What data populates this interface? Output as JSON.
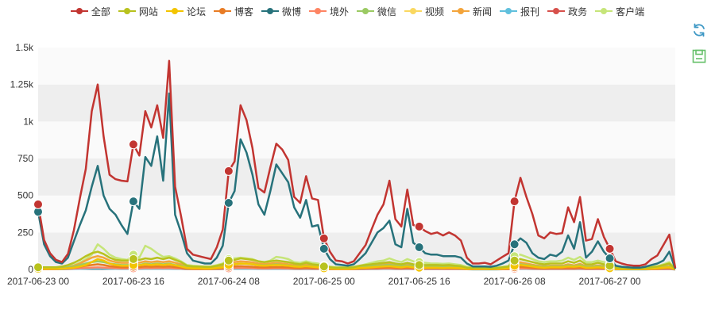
{
  "chart_data": {
    "type": "line",
    "title": "",
    "xlabel": "",
    "ylabel": "",
    "ylim": [
      0,
      1500
    ],
    "y_ticks": [
      0,
      250,
      500,
      750,
      1000,
      1250,
      1500
    ],
    "y_tick_labels": [
      "0",
      "250",
      "500",
      "750",
      "1k",
      "1.25k",
      "1.5k"
    ],
    "x_tick_labels": [
      "2017-06-23 00",
      "2017-06-23 16",
      "2017-06-24 08",
      "2017-06-25 00",
      "2017-06-25 16",
      "2017-06-26 08",
      "2017-06-27 00"
    ],
    "x_tick_indices": [
      0,
      16,
      32,
      48,
      64,
      80,
      96
    ],
    "grid": true,
    "legend_position": "top-center",
    "series": [
      {
        "name": "全部",
        "color": "#c23531",
        "values": [
          440,
          200,
          110,
          65,
          50,
          105,
          265,
          480,
          680,
          1070,
          1250,
          900,
          640,
          610,
          600,
          595,
          845,
          770,
          1070,
          960,
          1110,
          890,
          1410,
          560,
          360,
          140,
          100,
          90,
          80,
          70,
          150,
          270,
          665,
          730,
          1110,
          1010,
          820,
          550,
          520,
          690,
          850,
          810,
          740,
          490,
          450,
          630,
          480,
          470,
          210,
          120,
          60,
          55,
          40,
          55,
          110,
          165,
          270,
          370,
          440,
          600,
          340,
          290,
          540,
          300,
          290,
          260,
          240,
          250,
          230,
          250,
          230,
          195,
          80,
          40,
          40,
          45,
          35,
          60,
          85,
          110,
          460,
          620,
          490,
          375,
          230,
          210,
          250,
          240,
          245,
          420,
          320,
          490,
          195,
          205,
          340,
          220,
          140,
          55,
          40,
          30,
          25,
          25,
          35,
          70,
          95,
          165,
          235,
          10
        ]
      },
      {
        "name": "网站",
        "color": "#b8c21e",
        "values": [
          15,
          15,
          15,
          15,
          20,
          30,
          45,
          65,
          90,
          110,
          120,
          105,
          80,
          65,
          60,
          60,
          70,
          65,
          75,
          70,
          80,
          70,
          80,
          65,
          50,
          25,
          20,
          20,
          18,
          18,
          25,
          35,
          60,
          65,
          75,
          70,
          65,
          55,
          50,
          55,
          60,
          55,
          50,
          40,
          35,
          45,
          35,
          30,
          20,
          15,
          12,
          12,
          12,
          15,
          25,
          30,
          35,
          40,
          45,
          50,
          40,
          35,
          45,
          35,
          30,
          30,
          30,
          30,
          28,
          30,
          25,
          22,
          12,
          10,
          10,
          10,
          8,
          10,
          15,
          20,
          60,
          70,
          60,
          50,
          40,
          35,
          40,
          40,
          40,
          55,
          45,
          60,
          35,
          35,
          45,
          35,
          25,
          12,
          10,
          8,
          8,
          8,
          10,
          15,
          20,
          30,
          40,
          5
        ]
      },
      {
        "name": "论坛",
        "color": "#f3c400",
        "values": [
          5,
          5,
          5,
          5,
          5,
          8,
          12,
          20,
          30,
          50,
          70,
          60,
          40,
          30,
          25,
          25,
          30,
          28,
          35,
          30,
          35,
          30,
          35,
          28,
          20,
          10,
          8,
          8,
          6,
          6,
          10,
          15,
          30,
          35,
          40,
          38,
          35,
          28,
          25,
          28,
          30,
          28,
          25,
          20,
          18,
          22,
          18,
          15,
          8,
          6,
          5,
          5,
          5,
          6,
          10,
          12,
          15,
          18,
          20,
          22,
          18,
          15,
          20,
          15,
          12,
          12,
          12,
          12,
          10,
          12,
          10,
          8,
          5,
          4,
          4,
          4,
          3,
          4,
          6,
          8,
          25,
          30,
          25,
          20,
          15,
          12,
          15,
          15,
          15,
          20,
          18,
          22,
          12,
          12,
          15,
          12,
          8,
          4,
          3,
          3,
          3,
          3,
          4,
          6,
          8,
          12,
          15,
          2
        ]
      },
      {
        "name": "博客",
        "color": "#e87c25",
        "values": [
          3,
          3,
          3,
          3,
          5,
          8,
          12,
          18,
          25,
          30,
          35,
          30,
          22,
          18,
          15,
          15,
          18,
          16,
          20,
          18,
          20,
          18,
          20,
          16,
          12,
          6,
          5,
          5,
          4,
          4,
          6,
          10,
          18,
          20,
          22,
          20,
          18,
          15,
          14,
          15,
          16,
          15,
          14,
          11,
          10,
          12,
          10,
          9,
          5,
          4,
          3,
          3,
          3,
          4,
          6,
          8,
          10,
          11,
          12,
          14,
          11,
          10,
          12,
          10,
          9,
          9,
          9,
          9,
          8,
          9,
          8,
          7,
          4,
          3,
          3,
          3,
          2,
          3,
          4,
          5,
          15,
          18,
          15,
          12,
          9,
          8,
          9,
          9,
          9,
          12,
          10,
          13,
          8,
          8,
          10,
          8,
          6,
          3,
          2,
          2,
          2,
          2,
          3,
          4,
          5,
          8,
          10,
          1
        ]
      },
      {
        "name": "微博",
        "color": "#27727b",
        "values": [
          390,
          170,
          90,
          50,
          40,
          80,
          190,
          300,
          400,
          560,
          700,
          500,
          410,
          370,
          300,
          240,
          460,
          410,
          760,
          700,
          900,
          600,
          1190,
          370,
          250,
          110,
          60,
          50,
          40,
          40,
          80,
          160,
          450,
          530,
          880,
          790,
          640,
          440,
          370,
          530,
          710,
          650,
          590,
          420,
          350,
          470,
          290,
          300,
          140,
          70,
          35,
          30,
          25,
          35,
          70,
          110,
          180,
          250,
          280,
          330,
          170,
          150,
          410,
          180,
          150,
          110,
          100,
          100,
          90,
          90,
          90,
          80,
          40,
          20,
          20,
          20,
          18,
          25,
          40,
          60,
          170,
          210,
          180,
          110,
          80,
          70,
          100,
          90,
          120,
          230,
          140,
          320,
          80,
          120,
          190,
          120,
          75,
          25,
          18,
          15,
          12,
          12,
          18,
          30,
          40,
          60,
          120,
          5
        ]
      },
      {
        "name": "境外",
        "color": "#fe8463",
        "values": [
          2,
          2,
          2,
          2,
          3,
          4,
          6,
          8,
          10,
          12,
          14,
          12,
          10,
          8,
          7,
          7,
          8,
          7,
          9,
          8,
          9,
          8,
          9,
          7,
          6,
          3,
          2,
          2,
          2,
          2,
          3,
          4,
          8,
          9,
          10,
          9,
          8,
          7,
          6,
          7,
          8,
          7,
          6,
          5,
          5,
          6,
          5,
          4,
          2,
          2,
          2,
          2,
          2,
          2,
          3,
          4,
          5,
          5,
          6,
          6,
          5,
          4,
          6,
          4,
          4,
          4,
          4,
          4,
          3,
          4,
          3,
          3,
          2,
          1,
          1,
          1,
          1,
          1,
          2,
          2,
          6,
          7,
          6,
          5,
          4,
          3,
          4,
          4,
          4,
          5,
          4,
          6,
          3,
          3,
          4,
          3,
          2,
          1,
          1,
          1,
          1,
          1,
          1,
          2,
          2,
          3,
          4,
          1
        ]
      },
      {
        "name": "微信",
        "color": "#9bca63",
        "values": [
          10,
          10,
          10,
          10,
          12,
          15,
          20,
          30,
          40,
          50,
          55,
          50,
          40,
          35,
          30,
          30,
          35,
          30,
          40,
          35,
          40,
          35,
          40,
          30,
          25,
          15,
          12,
          12,
          10,
          10,
          12,
          18,
          30,
          35,
          40,
          38,
          35,
          30,
          28,
          30,
          35,
          30,
          28,
          22,
          20,
          25,
          20,
          18,
          12,
          10,
          8,
          8,
          8,
          10,
          15,
          18,
          22,
          25,
          28,
          32,
          25,
          22,
          28,
          22,
          20,
          20,
          20,
          20,
          18,
          20,
          18,
          15,
          8,
          6,
          6,
          6,
          5,
          6,
          10,
          12,
          30,
          35,
          30,
          25,
          20,
          18,
          20,
          20,
          20,
          28,
          22,
          30,
          18,
          18,
          22,
          18,
          12,
          6,
          5,
          4,
          4,
          4,
          5,
          8,
          10,
          15,
          20,
          3
        ]
      },
      {
        "name": "视频",
        "color": "#fad860",
        "values": [
          4,
          4,
          4,
          4,
          5,
          7,
          10,
          15,
          22,
          30,
          35,
          30,
          22,
          18,
          15,
          15,
          18,
          16,
          20,
          18,
          20,
          18,
          20,
          16,
          12,
          6,
          5,
          5,
          4,
          4,
          6,
          10,
          18,
          20,
          22,
          20,
          18,
          15,
          14,
          15,
          16,
          15,
          14,
          11,
          10,
          12,
          10,
          9,
          5,
          4,
          3,
          3,
          3,
          4,
          6,
          8,
          10,
          11,
          12,
          14,
          11,
          10,
          12,
          10,
          9,
          9,
          9,
          9,
          8,
          9,
          8,
          7,
          4,
          3,
          3,
          3,
          2,
          3,
          4,
          5,
          15,
          18,
          15,
          12,
          9,
          8,
          9,
          9,
          9,
          12,
          10,
          13,
          8,
          8,
          10,
          8,
          6,
          3,
          2,
          2,
          2,
          2,
          3,
          4,
          5,
          8,
          10,
          1
        ]
      },
      {
        "name": "新闻",
        "color": "#f3a43b",
        "values": [
          8,
          8,
          8,
          8,
          10,
          15,
          25,
          40,
          60,
          80,
          90,
          80,
          60,
          50,
          45,
          45,
          50,
          45,
          55,
          50,
          55,
          50,
          55,
          45,
          35,
          18,
          14,
          14,
          12,
          12,
          18,
          25,
          45,
          50,
          55,
          52,
          48,
          40,
          36,
          40,
          45,
          40,
          36,
          28,
          25,
          32,
          25,
          22,
          14,
          11,
          9,
          9,
          9,
          11,
          18,
          22,
          28,
          32,
          35,
          40,
          32,
          28,
          35,
          28,
          25,
          25,
          25,
          25,
          22,
          25,
          22,
          18,
          10,
          8,
          8,
          8,
          6,
          8,
          12,
          15,
          40,
          48,
          40,
          32,
          25,
          22,
          25,
          25,
          25,
          35,
          28,
          38,
          22,
          22,
          28,
          22,
          15,
          8,
          6,
          5,
          5,
          5,
          6,
          10,
          12,
          18,
          25,
          3
        ]
      },
      {
        "name": "报刊",
        "color": "#60c0dd",
        "values": [
          1,
          1,
          1,
          1,
          1,
          2,
          3,
          4,
          5,
          6,
          7,
          6,
          5,
          4,
          3,
          3,
          4,
          3,
          4,
          4,
          4,
          4,
          4,
          3,
          3,
          1,
          1,
          1,
          1,
          1,
          1,
          2,
          4,
          4,
          5,
          4,
          4,
          3,
          3,
          3,
          4,
          3,
          3,
          2,
          2,
          3,
          2,
          2,
          1,
          1,
          1,
          1,
          1,
          1,
          1,
          2,
          2,
          2,
          3,
          3,
          2,
          2,
          3,
          2,
          2,
          2,
          2,
          2,
          2,
          2,
          2,
          1,
          1,
          0,
          0,
          0,
          0,
          0,
          1,
          1,
          3,
          3,
          3,
          2,
          2,
          2,
          2,
          2,
          2,
          2,
          2,
          3,
          2,
          2,
          2,
          2,
          1,
          0,
          0,
          0,
          0,
          0,
          0,
          1,
          1,
          1,
          2,
          0
        ]
      },
      {
        "name": "政务",
        "color": "#d7504b",
        "values": [
          2,
          2,
          2,
          2,
          2,
          3,
          4,
          6,
          8,
          10,
          12,
          10,
          8,
          6,
          5,
          5,
          6,
          5,
          7,
          6,
          7,
          6,
          7,
          5,
          4,
          2,
          2,
          2,
          2,
          2,
          2,
          3,
          6,
          7,
          8,
          7,
          6,
          5,
          5,
          5,
          6,
          5,
          5,
          4,
          3,
          4,
          3,
          3,
          2,
          2,
          1,
          1,
          1,
          2,
          2,
          3,
          4,
          4,
          5,
          5,
          4,
          3,
          4,
          3,
          3,
          3,
          3,
          3,
          3,
          3,
          3,
          2,
          1,
          1,
          1,
          1,
          1,
          1,
          1,
          2,
          5,
          6,
          5,
          4,
          3,
          3,
          3,
          3,
          3,
          4,
          3,
          4,
          3,
          3,
          3,
          3,
          2,
          1,
          1,
          1,
          1,
          1,
          1,
          1,
          2,
          2,
          3,
          0
        ]
      },
      {
        "name": "客户端",
        "color": "#c6e579",
        "values": [
          12,
          12,
          12,
          12,
          15,
          20,
          30,
          45,
          70,
          100,
          170,
          140,
          100,
          80,
          70,
          65,
          100,
          80,
          160,
          140,
          110,
          85,
          90,
          75,
          55,
          30,
          25,
          22,
          20,
          20,
          30,
          40,
          70,
          75,
          80,
          75,
          70,
          55,
          50,
          60,
          85,
          80,
          70,
          50,
          45,
          55,
          45,
          40,
          25,
          20,
          15,
          15,
          15,
          18,
          25,
          35,
          45,
          55,
          60,
          75,
          60,
          50,
          70,
          55,
          50,
          45,
          40,
          40,
          38,
          40,
          35,
          30,
          18,
          12,
          12,
          12,
          10,
          12,
          18,
          22,
          90,
          100,
          85,
          70,
          55,
          50,
          55,
          55,
          60,
          80,
          65,
          85,
          50,
          50,
          60,
          50,
          35,
          15,
          12,
          10,
          10,
          10,
          12,
          18,
          22,
          35,
          50,
          5
        ]
      }
    ]
  },
  "toolbox": {
    "restore_icon_color": "#3e98c5",
    "save_icon_color": "#66c06a"
  }
}
